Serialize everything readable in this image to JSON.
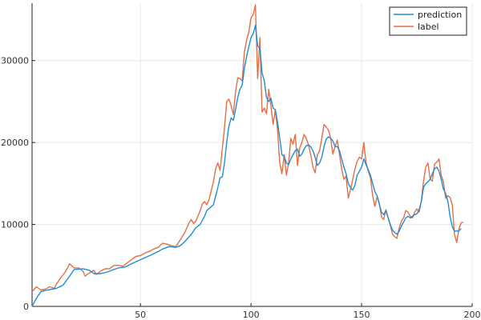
{
  "chart_data": {
    "type": "line",
    "title": "",
    "xlabel": "",
    "ylabel": "",
    "xlim": [
      1,
      200
    ],
    "ylim": [
      0,
      37000
    ],
    "grid": true,
    "legend_position": "top-right",
    "x_ticks": [
      50,
      100,
      150,
      200
    ],
    "y_ticks": [
      0,
      10000,
      20000,
      30000
    ],
    "series": [
      {
        "name": "prediction",
        "color": "#1f8dd6",
        "points": [
          [
            1,
            0
          ],
          [
            3,
            1000
          ],
          [
            5,
            1800
          ],
          [
            8,
            2000
          ],
          [
            12,
            2200
          ],
          [
            15,
            2600
          ],
          [
            18,
            3700
          ],
          [
            20,
            4500
          ],
          [
            24,
            4600
          ],
          [
            27,
            4400
          ],
          [
            29,
            4000
          ],
          [
            32,
            4000
          ],
          [
            35,
            4200
          ],
          [
            38,
            4500
          ],
          [
            40,
            4700
          ],
          [
            43,
            4800
          ],
          [
            46,
            5200
          ],
          [
            50,
            5700
          ],
          [
            55,
            6300
          ],
          [
            58,
            6700
          ],
          [
            60,
            7000
          ],
          [
            63,
            7300
          ],
          [
            66,
            7200
          ],
          [
            68,
            7400
          ],
          [
            70,
            7900
          ],
          [
            73,
            8800
          ],
          [
            75,
            9600
          ],
          [
            77,
            10000
          ],
          [
            79,
            11000
          ],
          [
            80,
            11700
          ],
          [
            83,
            12400
          ],
          [
            85,
            14500
          ],
          [
            86,
            15700
          ],
          [
            87,
            15800
          ],
          [
            88,
            17500
          ],
          [
            89,
            20000
          ],
          [
            90,
            22000
          ],
          [
            91,
            23000
          ],
          [
            92,
            22700
          ],
          [
            93,
            24000
          ],
          [
            94,
            25500
          ],
          [
            95,
            26500
          ],
          [
            96,
            27000
          ],
          [
            97,
            29000
          ],
          [
            98,
            30500
          ],
          [
            99,
            31700
          ],
          [
            100,
            32800
          ],
          [
            101,
            33300
          ],
          [
            102,
            34300
          ],
          [
            103,
            31800
          ],
          [
            104,
            31500
          ],
          [
            105,
            28500
          ],
          [
            106,
            27500
          ],
          [
            107,
            25500
          ],
          [
            108,
            25000
          ],
          [
            109,
            25400
          ],
          [
            110,
            24200
          ],
          [
            111,
            24000
          ],
          [
            112,
            22500
          ],
          [
            113,
            20500
          ],
          [
            114,
            18500
          ],
          [
            115,
            18300
          ],
          [
            116,
            17500
          ],
          [
            117,
            17300
          ],
          [
            118,
            18000
          ],
          [
            119,
            18500
          ],
          [
            120,
            19000
          ],
          [
            121,
            19200
          ],
          [
            122,
            18300
          ],
          [
            123,
            18600
          ],
          [
            124,
            19200
          ],
          [
            125,
            19600
          ],
          [
            126,
            19700
          ],
          [
            127,
            19500
          ],
          [
            128,
            19000
          ],
          [
            129,
            18200
          ],
          [
            130,
            17200
          ],
          [
            131,
            17500
          ],
          [
            132,
            18200
          ],
          [
            133,
            19500
          ],
          [
            134,
            20400
          ],
          [
            135,
            20700
          ],
          [
            136,
            20500
          ],
          [
            137,
            20200
          ],
          [
            138,
            19500
          ],
          [
            139,
            19500
          ],
          [
            140,
            19000
          ],
          [
            141,
            18000
          ],
          [
            142,
            17000
          ],
          [
            143,
            16200
          ],
          [
            144,
            15000
          ],
          [
            145,
            14500
          ],
          [
            146,
            14200
          ],
          [
            147,
            14800
          ],
          [
            148,
            16000
          ],
          [
            149,
            16500
          ],
          [
            150,
            17000
          ],
          [
            151,
            18000
          ],
          [
            152,
            17300
          ],
          [
            153,
            16700
          ],
          [
            154,
            16000
          ],
          [
            155,
            15000
          ],
          [
            156,
            14000
          ],
          [
            157,
            13500
          ],
          [
            158,
            12500
          ],
          [
            159,
            11500
          ],
          [
            160,
            11200
          ],
          [
            161,
            11700
          ],
          [
            162,
            10800
          ],
          [
            163,
            10000
          ],
          [
            164,
            9300
          ],
          [
            165,
            9000
          ],
          [
            166,
            8800
          ],
          [
            167,
            9200
          ],
          [
            168,
            9800
          ],
          [
            169,
            10300
          ],
          [
            170,
            10800
          ],
          [
            171,
            11000
          ],
          [
            172,
            10800
          ],
          [
            173,
            11000
          ],
          [
            174,
            11200
          ],
          [
            175,
            11300
          ],
          [
            176,
            11800
          ],
          [
            177,
            12800
          ],
          [
            178,
            14500
          ],
          [
            179,
            15000
          ],
          [
            180,
            15200
          ],
          [
            181,
            15500
          ],
          [
            182,
            16200
          ],
          [
            183,
            16800
          ],
          [
            184,
            17000
          ],
          [
            185,
            16500
          ],
          [
            186,
            15500
          ],
          [
            187,
            14300
          ],
          [
            188,
            13800
          ],
          [
            189,
            12800
          ],
          [
            190,
            11000
          ],
          [
            191,
            9700
          ],
          [
            192,
            9200
          ],
          [
            194,
            9200
          ],
          [
            195,
            9500
          ]
        ]
      },
      {
        "name": "label",
        "color": "#e26f46",
        "points": [
          [
            1,
            1800
          ],
          [
            3,
            2400
          ],
          [
            5,
            2000
          ],
          [
            7,
            2100
          ],
          [
            9,
            2400
          ],
          [
            11,
            2200
          ],
          [
            12,
            2700
          ],
          [
            14,
            3500
          ],
          [
            16,
            4200
          ],
          [
            18,
            5200
          ],
          [
            20,
            4700
          ],
          [
            22,
            4700
          ],
          [
            24,
            4300
          ],
          [
            25,
            3700
          ],
          [
            27,
            4100
          ],
          [
            29,
            4400
          ],
          [
            30,
            3900
          ],
          [
            32,
            4300
          ],
          [
            34,
            4600
          ],
          [
            36,
            4600
          ],
          [
            38,
            5000
          ],
          [
            40,
            5000
          ],
          [
            42,
            4900
          ],
          [
            44,
            5300
          ],
          [
            46,
            5700
          ],
          [
            48,
            6100
          ],
          [
            50,
            6200
          ],
          [
            52,
            6500
          ],
          [
            54,
            6700
          ],
          [
            56,
            7000
          ],
          [
            58,
            7200
          ],
          [
            60,
            7700
          ],
          [
            62,
            7600
          ],
          [
            64,
            7400
          ],
          [
            66,
            7300
          ],
          [
            68,
            8100
          ],
          [
            70,
            9000
          ],
          [
            72,
            10200
          ],
          [
            73,
            10600
          ],
          [
            74,
            10100
          ],
          [
            75,
            10400
          ],
          [
            76,
            11000
          ],
          [
            77,
            11700
          ],
          [
            78,
            12500
          ],
          [
            79,
            12800
          ],
          [
            80,
            12400
          ],
          [
            81,
            13000
          ],
          [
            83,
            15200
          ],
          [
            84,
            16800
          ],
          [
            85,
            17500
          ],
          [
            86,
            16600
          ],
          [
            87,
            19200
          ],
          [
            88,
            21800
          ],
          [
            89,
            25000
          ],
          [
            90,
            25300
          ],
          [
            91,
            24500
          ],
          [
            92,
            23400
          ],
          [
            93,
            26200
          ],
          [
            94,
            27900
          ],
          [
            95,
            27800
          ],
          [
            96,
            27500
          ],
          [
            97,
            31000
          ],
          [
            98,
            32500
          ],
          [
            99,
            33500
          ],
          [
            100,
            35200
          ],
          [
            101,
            35600
          ],
          [
            102,
            36800
          ],
          [
            103,
            27800
          ],
          [
            104,
            32800
          ],
          [
            105,
            23700
          ],
          [
            106,
            24200
          ],
          [
            107,
            23500
          ],
          [
            108,
            26500
          ],
          [
            109,
            24500
          ],
          [
            110,
            22200
          ],
          [
            111,
            24000
          ],
          [
            112,
            21500
          ],
          [
            113,
            17500
          ],
          [
            114,
            16200
          ],
          [
            115,
            18500
          ],
          [
            116,
            16000
          ],
          [
            117,
            17500
          ],
          [
            118,
            20500
          ],
          [
            119,
            19800
          ],
          [
            120,
            21000
          ],
          [
            121,
            17200
          ],
          [
            122,
            19300
          ],
          [
            123,
            20000
          ],
          [
            124,
            21000
          ],
          [
            125,
            20500
          ],
          [
            126,
            19700
          ],
          [
            127,
            18500
          ],
          [
            128,
            17000
          ],
          [
            129,
            16300
          ],
          [
            130,
            18500
          ],
          [
            131,
            19000
          ],
          [
            132,
            20500
          ],
          [
            133,
            22200
          ],
          [
            134,
            21900
          ],
          [
            135,
            21500
          ],
          [
            136,
            20600
          ],
          [
            137,
            18600
          ],
          [
            138,
            19500
          ],
          [
            139,
            20300
          ],
          [
            140,
            18500
          ],
          [
            141,
            16800
          ],
          [
            142,
            15500
          ],
          [
            143,
            15900
          ],
          [
            144,
            13200
          ],
          [
            145,
            14300
          ],
          [
            146,
            15500
          ],
          [
            147,
            16800
          ],
          [
            148,
            17700
          ],
          [
            149,
            18200
          ],
          [
            150,
            18000
          ],
          [
            151,
            20000
          ],
          [
            152,
            17600
          ],
          [
            153,
            16500
          ],
          [
            154,
            15700
          ],
          [
            155,
            13500
          ],
          [
            156,
            12200
          ],
          [
            157,
            13400
          ],
          [
            158,
            12600
          ],
          [
            159,
            10900
          ],
          [
            160,
            10600
          ],
          [
            161,
            11800
          ],
          [
            162,
            10800
          ],
          [
            163,
            9900
          ],
          [
            164,
            8800
          ],
          [
            165,
            8500
          ],
          [
            166,
            8300
          ],
          [
            167,
            9600
          ],
          [
            168,
            10400
          ],
          [
            169,
            10800
          ],
          [
            170,
            11700
          ],
          [
            171,
            11500
          ],
          [
            172,
            11000
          ],
          [
            173,
            10800
          ],
          [
            174,
            11500
          ],
          [
            175,
            11900
          ],
          [
            176,
            11500
          ],
          [
            177,
            12800
          ],
          [
            178,
            15300
          ],
          [
            179,
            17000
          ],
          [
            180,
            17500
          ],
          [
            181,
            15500
          ],
          [
            182,
            15300
          ],
          [
            183,
            17400
          ],
          [
            184,
            17600
          ],
          [
            185,
            18000
          ],
          [
            186,
            16000
          ],
          [
            187,
            15200
          ],
          [
            188,
            13200
          ],
          [
            189,
            13500
          ],
          [
            190,
            13300
          ],
          [
            191,
            12400
          ],
          [
            192,
            8800
          ],
          [
            193,
            7800
          ],
          [
            194,
            9400
          ],
          [
            195,
            10200
          ],
          [
            196,
            10300
          ]
        ]
      }
    ]
  }
}
